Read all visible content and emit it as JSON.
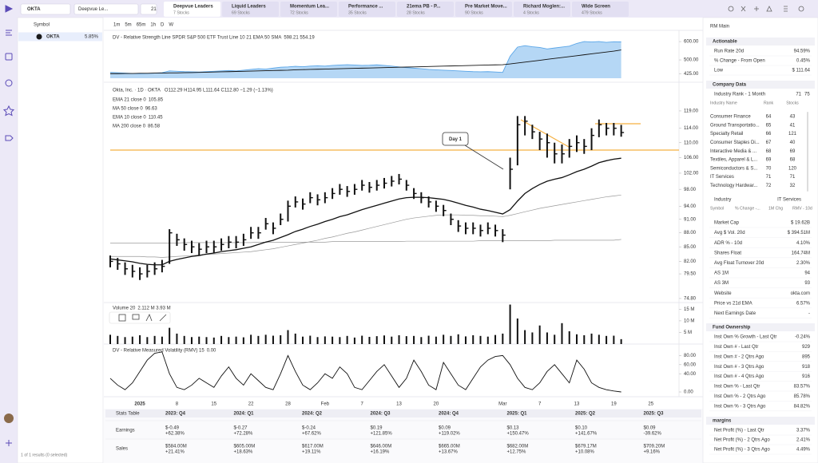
{
  "top_bar": {
    "search": "OKTA",
    "list_select": "Deepvue Le...",
    "badge": "21",
    "tabs": [
      {
        "name": "Deepvue Leaders",
        "count": "7 Stocks"
      },
      {
        "name": "Liquid Leaders",
        "count": "69 Stocks"
      },
      {
        "name": "Momentum Lea...",
        "count": "72 Stocks"
      },
      {
        "name": "Performance ...",
        "count": "35 Stocks"
      },
      {
        "name": "21ema PB - P...",
        "count": "28 Stocks"
      },
      {
        "name": "Pre Market Move...",
        "count": "90 Stocks"
      },
      {
        "name": "Richard Moglen:...",
        "count": "4 Stocks"
      },
      {
        "name": "Wide Screen",
        "count": "479 Stocks"
      }
    ]
  },
  "watchlist": {
    "header": "Symbol",
    "rows": [
      {
        "symbol": "OKTA",
        "change": "5.85%"
      }
    ],
    "footer": "1 of 1 results (0 selected)"
  },
  "chart": {
    "timeframes": [
      "1m",
      "5m",
      "65m",
      "1h",
      "D",
      "W"
    ],
    "title": "Okta, Inc. · 1D · OKTA",
    "ohlc": "O112.29 H114.95 L111.64 C112.80 −1.29 (−1.13%)",
    "indicators": [
      "EMA 21 close 0",
      "MA 50 close 0",
      "EMA 10 close 0",
      "MA 200 close 0"
    ],
    "indicator_values": [
      "105.85",
      "96.63",
      "110.45",
      "86.58"
    ],
    "annotation": "Day 1",
    "dates": [
      null,
      null,
      null,
      null,
      "2025",
      null,
      null,
      null,
      null,
      "8",
      null,
      null,
      null,
      null,
      "15",
      null,
      null,
      null,
      null,
      "22",
      null,
      null,
      null,
      null,
      "28",
      null,
      null,
      null,
      null,
      "Feb",
      null,
      null,
      null,
      null,
      "7",
      null,
      null,
      null,
      null,
      "13",
      null,
      null,
      null,
      null,
      "20",
      null,
      null,
      null,
      null,
      null,
      null,
      null,
      null,
      "Mar",
      null,
      null,
      null,
      null,
      "7",
      null,
      null,
      null,
      null,
      "13",
      null,
      null,
      null,
      null,
      "19",
      null,
      null,
      null,
      null,
      "25"
    ],
    "price": {
      "log_scale": true,
      "ylim": [
        74.2,
        126.5
      ],
      "yticks": [
        {
          "value": 119,
          "label": "119.00"
        },
        {
          "value": 114,
          "label": "114.00"
        },
        {
          "value": 110,
          "label": "110.00"
        },
        {
          "value": 106,
          "label": "106.00"
        },
        {
          "value": 102,
          "label": "102.00"
        },
        {
          "value": 98,
          "label": "98.00"
        },
        {
          "value": 94,
          "label": "94.00"
        },
        {
          "value": 91,
          "label": "91.00"
        },
        {
          "value": 88,
          "label": "88.00"
        },
        {
          "value": 85,
          "label": "85.00"
        },
        {
          "value": 82,
          "label": "82.00"
        },
        {
          "value": 79.5,
          "label": "79.50"
        },
        {
          "value": 74.8,
          "label": "74.80"
        }
      ],
      "high": [
        83.2,
        82.7,
        81.8,
        81.3,
        80.8,
        81.3,
        81.8,
        82.3,
        88.8,
        87.8,
        86.8,
        86.3,
        85.8,
        86.3,
        86.3,
        86.8,
        87.3,
        87.3,
        87.8,
        89.3,
        89.3,
        91.3,
        90.3,
        92.3,
        95.3,
        96.3,
        95.8,
        97.3,
        96.8,
        97.3,
        98.3,
        99.3,
        98.8,
        99.3,
        100.3,
        99.8,
        100.3,
        100.8,
        101.3,
        101.8,
        100.3,
        98.3,
        97.3,
        96.3,
        95.3,
        94.3,
        92.3,
        90.8,
        90.3,
        90.3,
        89.8,
        90.3,
        89.8,
        88.8,
        106,
        117.5,
        117.5,
        115,
        113,
        112.5,
        110,
        109.5,
        111,
        112,
        111,
        114,
        116.5,
        115.5,
        115.5,
        114.95,
        null,
        null,
        null,
        null
      ],
      "low": [
        80.8,
        80.3,
        79.3,
        78.8,
        78.3,
        78.8,
        79.3,
        79.8,
        81.5,
        85.2,
        84.2,
        83.7,
        83.2,
        83.7,
        83.7,
        84.2,
        84.7,
        84.7,
        85.2,
        86.7,
        86.7,
        88.7,
        87.7,
        89.7,
        90.5,
        93.7,
        93.2,
        94.7,
        94.2,
        94.7,
        95.7,
        96.7,
        96.2,
        96.7,
        97.7,
        97.2,
        97.7,
        98.2,
        98.7,
        99.2,
        97.7,
        95.7,
        94.7,
        93.7,
        92.7,
        91.7,
        89.7,
        88.2,
        87.7,
        87.7,
        87.2,
        87.7,
        87.2,
        86,
        98,
        104,
        112,
        111,
        108,
        106,
        104.5,
        104.5,
        106,
        107.5,
        107,
        108,
        111.5,
        112,
        112,
        111.64,
        null,
        null,
        null,
        null
      ],
      "close": [
        82,
        81.5,
        80.5,
        80,
        79.5,
        80,
        80.5,
        81,
        88,
        86.5,
        85.5,
        85,
        84.5,
        85,
        85,
        85.5,
        86,
        86,
        86.5,
        88,
        88,
        90,
        89,
        91,
        94,
        95,
        94.5,
        96,
        95.5,
        96,
        97,
        98,
        97.5,
        98,
        99,
        98.5,
        99,
        99.5,
        100,
        100.5,
        99,
        97,
        96,
        95,
        94,
        93,
        91,
        89.5,
        89,
        89,
        88.5,
        89,
        88.5,
        87.5,
        103,
        115,
        116,
        113,
        111,
        110,
        107,
        107,
        109,
        110,
        109,
        112,
        115,
        114,
        114,
        112.8,
        null,
        null,
        null,
        null
      ],
      "ema21": [
        82.5,
        82.3,
        82.1,
        81.9,
        81.6,
        81.4,
        81.3,
        81.3,
        82,
        82.4,
        82.7,
        83,
        83.2,
        83.5,
        83.7,
        84,
        84.2,
        84.4,
        84.7,
        85,
        85.5,
        86,
        86.4,
        87,
        87.6,
        88.3,
        88.8,
        89.4,
        89.9,
        90.5,
        91,
        91.6,
        92,
        92.6,
        93.2,
        93.7,
        94.2,
        94.7,
        95.2,
        95.7,
        96,
        96.1,
        96.1,
        96,
        95.8,
        95.6,
        95.2,
        94.7,
        94.2,
        93.8,
        93.3,
        93,
        92.6,
        92.2,
        93.2,
        95.2,
        97,
        98.2,
        99.2,
        100,
        100.5,
        100.9,
        101.6,
        102.4,
        103,
        103.8,
        104.7,
        105.2,
        105.6,
        105.85,
        null,
        null,
        null,
        null
      ],
      "ma50": [
        83,
        83,
        83,
        83,
        83,
        82.9,
        82.9,
        82.8,
        82.9,
        83,
        83.1,
        83.2,
        83.3,
        83.4,
        83.5,
        83.6,
        83.7,
        83.8,
        83.9,
        84,
        84.2,
        84.4,
        84.6,
        84.9,
        85.2,
        85.5,
        85.8,
        86.1,
        86.4,
        86.8,
        87.1,
        87.5,
        87.9,
        88.2,
        88.6,
        89,
        89.4,
        89.8,
        90.2,
        90.6,
        91,
        91.3,
        91.5,
        91.7,
        91.9,
        92,
        92,
        92,
        91.9,
        91.9,
        91.8,
        91.8,
        91.7,
        91.6,
        91.9,
        92.3,
        92.7,
        93.1,
        93.5,
        93.8,
        94.1,
        94.4,
        94.7,
        95,
        95.3,
        95.6,
        95.9,
        96.2,
        96.4,
        96.63,
        null,
        null,
        null,
        null
      ],
      "ma200": [
        85.8,
        85.8,
        85.8,
        85.8,
        85.8,
        85.8,
        85.8,
        85.8,
        85.8,
        85.8,
        85.9,
        85.9,
        85.9,
        85.9,
        85.9,
        85.9,
        85.9,
        85.9,
        85.9,
        85.9,
        86,
        86,
        86,
        86,
        86,
        86,
        86,
        86,
        86,
        86,
        86.1,
        86.1,
        86.1,
        86.1,
        86.1,
        86.1,
        86.1,
        86.1,
        86.1,
        86.1,
        86.2,
        86.2,
        86.2,
        86.2,
        86.2,
        86.2,
        86.2,
        86.2,
        86.2,
        86.2,
        86.3,
        86.3,
        86.3,
        86.3,
        86.3,
        86.3,
        86.3,
        86.3,
        86.3,
        86.3,
        86.4,
        86.4,
        86.4,
        86.4,
        86.4,
        86.4,
        86.4,
        86.4,
        86.4,
        86.58,
        null,
        null,
        null,
        null
      ]
    },
    "rs": {
      "legend": "DV - Relative Strength Line SPDR S&P 500 ETF Trust Line 10 21 EMA 50 SMA",
      "legend_values": "598.21 554.19",
      "color": "#5aa6e8",
      "ylim": [
        400,
        644
      ],
      "yticks": [
        {
          "value": 425,
          "label": "425.00"
        },
        {
          "value": 500,
          "label": "500.00"
        },
        {
          "value": 600,
          "label": "600.00"
        }
      ],
      "rs": [
        432,
        430,
        428,
        426,
        425,
        426,
        428,
        430,
        440,
        438,
        436,
        435,
        434,
        436,
        438,
        440,
        442,
        440,
        444,
        448,
        452,
        450,
        455,
        460,
        462,
        465,
        463,
        466,
        468,
        466,
        470,
        472,
        474,
        472,
        470,
        471,
        473,
        470,
        466,
        462,
        458,
        455,
        452,
        448,
        446,
        444,
        442,
        440,
        438,
        436,
        435,
        436,
        434,
        432,
        520,
        570,
        578,
        572,
        568,
        560,
        565,
        570,
        575,
        590,
        600,
        598,
        600,
        596,
        599,
        598.21,
        null,
        null,
        null,
        null
      ],
      "sma": [
        425,
        425,
        426,
        426,
        427,
        427,
        428,
        428,
        429,
        429,
        430,
        431,
        432,
        433,
        434,
        435,
        436,
        437,
        438,
        439,
        440,
        441,
        442,
        443,
        444,
        446,
        447,
        448,
        449,
        450,
        451,
        452,
        453,
        454,
        455,
        456,
        457,
        458,
        459,
        460,
        461,
        462,
        463,
        464,
        465,
        466,
        467,
        468,
        469,
        470,
        471,
        472,
        473,
        474,
        478,
        483,
        488,
        493,
        498,
        503,
        508,
        513,
        518,
        523,
        528,
        533,
        538,
        543,
        548,
        554.19,
        null,
        null,
        null,
        null
      ]
    },
    "volume": {
      "legend": "Volume 20",
      "legend_values": "2.112 M 3.93 M",
      "ylim": [
        0,
        16.5
      ],
      "yticks": [
        {
          "value": 5,
          "label": "5 M"
        },
        {
          "value": 10,
          "label": "10 M"
        },
        {
          "value": 15,
          "label": "15 M"
        }
      ],
      "values": [
        4,
        3.5,
        3,
        3.2,
        3.8,
        3,
        3.5,
        3.2,
        7,
        4.5,
        3.5,
        3,
        3.2,
        3,
        2.8,
        3.5,
        3,
        3.2,
        2.9,
        4,
        3.5,
        4,
        3.6,
        3.8,
        6,
        4.5,
        3.2,
        3.6,
        3,
        3.3,
        3.2,
        3,
        3.5,
        2.8,
        3.6,
        3.1,
        3.4,
        3.7,
        3.2,
        3.8,
        3.4,
        3.5,
        3,
        3.6,
        3.2,
        4,
        3.5,
        4.2,
        3.3,
        3.8,
        3.5,
        3.2,
        3.9,
        4.5,
        17,
        11,
        6,
        5,
        8,
        5,
        4,
        9,
        5.5,
        4.2,
        3.8,
        4.5,
        4,
        3.5,
        3.6,
        2.112,
        null,
        null,
        null,
        null
      ]
    },
    "rmv": {
      "legend": "DV - Relative Measured Volatility (RMV) 15",
      "legend_value": "0.00",
      "ylim": [
        0,
        100
      ],
      "yticks": [
        {
          "value": 0,
          "label": "0.00"
        },
        {
          "value": 40,
          "label": "40.00"
        },
        {
          "value": 60,
          "label": "60.00"
        },
        {
          "value": 80,
          "label": "80.00"
        }
      ],
      "values": [
        30,
        15,
        5,
        20,
        45,
        70,
        85,
        88,
        40,
        10,
        5,
        15,
        30,
        20,
        10,
        35,
        55,
        30,
        15,
        40,
        25,
        10,
        5,
        40,
        80,
        45,
        15,
        5,
        20,
        40,
        30,
        55,
        40,
        10,
        5,
        25,
        45,
        60,
        35,
        10,
        30,
        70,
        45,
        15,
        5,
        65,
        40,
        15,
        5,
        30,
        55,
        70,
        78,
        80,
        60,
        30,
        10,
        5,
        20,
        45,
        60,
        40,
        20,
        70,
        50,
        20,
        10,
        5,
        2,
        0,
        null,
        null,
        null,
        null
      ]
    }
  },
  "stats_table": {
    "header": [
      "Stats Table",
      "2023: Q4",
      "2024: Q1",
      "2024: Q2",
      "2024: Q3",
      "2024: Q4",
      "2025: Q1",
      "2025: Q2",
      "2025: Q3"
    ],
    "rows": [
      {
        "label": "Earnings",
        "cells": [
          [
            "$-0.49",
            "+62.38%"
          ],
          [
            "$-0.27",
            "+72.28%"
          ],
          [
            "$-0.24",
            "+67.62%"
          ],
          [
            "$0.19",
            "+121.85%"
          ],
          [
            "$0.09",
            "+119.02%"
          ],
          [
            "$0.13",
            "+150.47%"
          ],
          [
            "$0.10",
            "+141.67%"
          ],
          [
            "$0.09",
            "-39.62%"
          ]
        ]
      },
      {
        "label": "Sales",
        "cells": [
          [
            "$584.00M",
            "+21.41%"
          ],
          [
            "$605.00M",
            "+18.63%"
          ],
          [
            "$617.00M",
            "+19.11%"
          ],
          [
            "$646.00M",
            "+16.19%"
          ],
          [
            "$665.00M",
            "+13.67%"
          ],
          [
            "$682.00M",
            "+12.75%"
          ],
          [
            "$679.17M",
            "+10.08%"
          ],
          [
            "$709.20M",
            "+9.16%"
          ]
        ]
      }
    ]
  },
  "right_panel": {
    "title": "RM Main",
    "actionable": {
      "title": "Actionable",
      "rows": [
        [
          "Run Rate 20d",
          "94.59%"
        ],
        [
          "% Change - From Open",
          "0.45%"
        ],
        [
          "Low",
          "$ 111.64"
        ]
      ]
    },
    "company_data": {
      "title": "Company Data",
      "rank_label": "Industry Rank - 1 Month",
      "rank_value": "71",
      "rank_select": "75",
      "table_header": [
        "Industry Name",
        "Rank",
        "Stocks"
      ],
      "table_rows": [
        [
          "Consumer Finance",
          "64",
          "43"
        ],
        [
          "Ground Transportatio...",
          "65",
          "41"
        ],
        [
          "Specialty Retail",
          "66",
          "121"
        ],
        [
          "Consumer Staples Di...",
          "67",
          "40"
        ],
        [
          "Interactive Media & ...",
          "68",
          "69"
        ],
        [
          "Textiles, Apparel & L...",
          "69",
          "68"
        ],
        [
          "Semiconductors & S...",
          "70",
          "120"
        ],
        [
          "IT Services",
          "71",
          "71"
        ],
        [
          "Technology Hardwar...",
          "72",
          "32"
        ]
      ],
      "industry_label": "Industry",
      "industry_value": "IT Services",
      "sub_header": [
        "Symbol",
        "% Change -...",
        "1M Chg",
        "RMV - 10d"
      ],
      "rows": [
        [
          "Market Cap",
          "$ 19.62B"
        ],
        [
          "Avg $ Vol. 20d",
          "$ 394.51M"
        ],
        [
          "ADR % - 10d",
          "4.10%"
        ],
        [
          "Shares Float",
          "164.74M"
        ],
        [
          "Avg Float Turnover 20d",
          "2.30%"
        ],
        [
          "AS 1M",
          "94"
        ],
        [
          "AS 3M",
          "93"
        ],
        [
          "Website",
          "okta.com"
        ],
        [
          "Price vs 21d EMA",
          "6.57%"
        ],
        [
          "Next Earnings Date",
          "-"
        ]
      ]
    },
    "fund_ownership": {
      "title": "Fund Ownership",
      "rows": [
        [
          "Inst Own % Growth - Last Qtr",
          "-0.24%"
        ],
        [
          "Inst Own # - Last Qtr",
          "929"
        ],
        [
          "Inst Own # - 2 Qtrs Ago",
          "895"
        ],
        [
          "Inst Own # - 3 Qtrs Ago",
          "918"
        ],
        [
          "Inst Own # - 4 Qtrs Ago",
          "916"
        ],
        [
          "Inst Own % - Last Qtr",
          "83.57%"
        ],
        [
          "Inst Own % - 2 Qtrs Ago",
          "85.78%"
        ],
        [
          "Inst Own % - 3 Qtrs Ago",
          "84.82%"
        ]
      ]
    },
    "margins": {
      "title": "margins",
      "rows": [
        [
          "Net Profit (%) - Last Qtr",
          "3.37%"
        ],
        [
          "Net Profit (%) - 2 Qtrs Ago",
          "2.41%"
        ],
        [
          "Net Profit (%) - 3 Qtrs Ago",
          "4.49%"
        ]
      ]
    }
  }
}
